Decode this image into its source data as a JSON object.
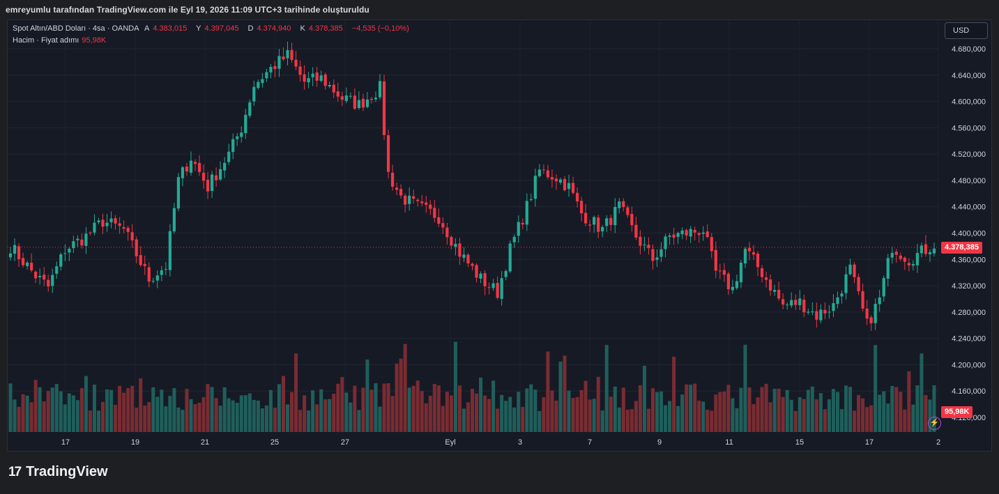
{
  "caption": "emreyumlu tarafından TradingView.com ile Eyl 19, 2026 11:09 UTC+3 tarihinde oluşturuldu",
  "legend": {
    "symbol": "Spot Altın/ABD Doları · 4sa · OANDA",
    "open_label": "A",
    "open": "4.383,015",
    "high_label": "Y",
    "high": "4.397,045",
    "low_label": "D",
    "low": "4.374,940",
    "close_label": "K",
    "close": "4.378,385",
    "change": "−4,535 (−0,10%)",
    "volume_label": "Hacim · Fiyat adımı",
    "volume_value": "95,98K"
  },
  "currency_button": "USD",
  "last_price_tag": "4.378,385",
  "last_volume_tag": "95,98K",
  "brand": {
    "logo": "17",
    "name": "TradingView"
  },
  "colors": {
    "up": "#22ab94",
    "down": "#f23645",
    "volume_up": "#1f5f5b",
    "volume_down": "#7a2c32",
    "background": "#161a25"
  },
  "chart_data": {
    "type": "candlestick",
    "title": "Spot Altın/ABD Doları · 4sa · OANDA",
    "price_axis_ticks": [
      4680000,
      4640000,
      4600000,
      4560000,
      4520000,
      4480000,
      4440000,
      4400000,
      4360000,
      4320000,
      4280000,
      4240000,
      4200000,
      4160000,
      4120000
    ],
    "price_axis_labels": [
      "4.680,000",
      "4.640,000",
      "4.600,000",
      "4.560,000",
      "4.520,000",
      "4.480,000",
      "4.440,000",
      "4.400,000",
      "4.360,000",
      "4.320,000",
      "4.280,000",
      "4.240,000",
      "4.200,000",
      "4.160,000",
      "4.120,000"
    ],
    "time_axis_labels": [
      "17",
      "19",
      "21",
      "25",
      "27",
      "Eyl",
      "3",
      "7",
      "9",
      "11",
      "15",
      "17",
      "2"
    ],
    "ylim": [
      4108,
      4707
    ],
    "last_price": 4378.385,
    "anchors": [
      [
        0,
        4380
      ],
      [
        6,
        4335
      ],
      [
        9,
        4318
      ],
      [
        13,
        4375
      ],
      [
        18,
        4395
      ],
      [
        22,
        4418
      ],
      [
        27,
        4405
      ],
      [
        29,
        4380
      ],
      [
        33,
        4330
      ],
      [
        37,
        4350
      ],
      [
        40,
        4480
      ],
      [
        43,
        4515
      ],
      [
        47,
        4470
      ],
      [
        52,
        4520
      ],
      [
        55,
        4560
      ],
      [
        58,
        4625
      ],
      [
        62,
        4650
      ],
      [
        66,
        4670
      ],
      [
        70,
        4630
      ],
      [
        74,
        4635
      ],
      [
        79,
        4605
      ],
      [
        83,
        4595
      ],
      [
        88,
        4620
      ],
      [
        90,
        4490
      ],
      [
        93,
        4455
      ],
      [
        97,
        4440
      ],
      [
        102,
        4425
      ],
      [
        107,
        4370
      ],
      [
        112,
        4330
      ],
      [
        116,
        4310
      ],
      [
        119,
        4375
      ],
      [
        123,
        4440
      ],
      [
        126,
        4495
      ],
      [
        130,
        4485
      ],
      [
        133,
        4470
      ],
      [
        136,
        4430
      ],
      [
        141,
        4405
      ],
      [
        145,
        4440
      ],
      [
        149,
        4395
      ],
      [
        153,
        4360
      ],
      [
        157,
        4395
      ],
      [
        161,
        4400
      ],
      [
        165,
        4405
      ],
      [
        168,
        4340
      ],
      [
        172,
        4315
      ],
      [
        175,
        4375
      ],
      [
        179,
        4340
      ],
      [
        184,
        4290
      ],
      [
        188,
        4295
      ],
      [
        192,
        4275
      ],
      [
        196,
        4290
      ],
      [
        200,
        4345
      ],
      [
        204,
        4260
      ],
      [
        207,
        4300
      ],
      [
        210,
        4380
      ],
      [
        214,
        4360
      ],
      [
        218,
        4375
      ],
      [
        220,
        4383
      ]
    ],
    "volume_max": 150000
  }
}
